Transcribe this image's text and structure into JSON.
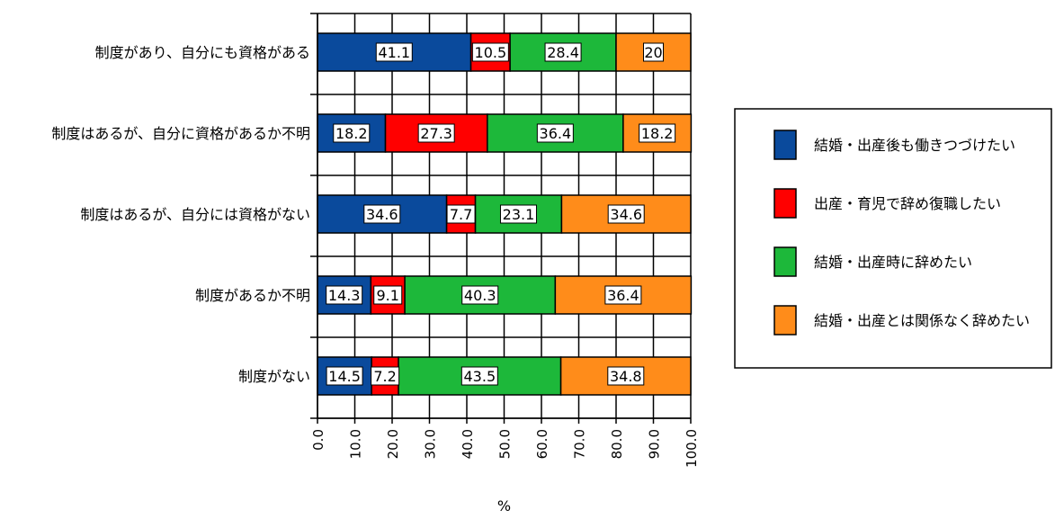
{
  "chart_data": {
    "type": "bar",
    "orientation": "horizontal",
    "stacked": true,
    "categories": [
      "制度があり、自分にも資格がある",
      "制度はあるが、自分に資格があるか不明",
      "制度はあるが、自分には資格がない",
      "制度があるか不明",
      "制度がない"
    ],
    "series": [
      {
        "name": "結婚・出産後も働きつづけたい",
        "color": "#0a4a9c",
        "values": [
          41.1,
          18.2,
          34.6,
          14.3,
          14.5
        ]
      },
      {
        "name": "出産・育児で辞め復職したい",
        "color": "#ff0000",
        "values": [
          10.5,
          27.3,
          7.7,
          9.1,
          7.2
        ]
      },
      {
        "name": "結婚・出産時に辞めたい",
        "color": "#1db83a",
        "values": [
          28.4,
          36.4,
          23.1,
          40.3,
          43.5
        ]
      },
      {
        "name": "結婚・出産とは関係なく辞めたい",
        "color": "#ff8c1a",
        "values": [
          20,
          18.2,
          34.6,
          36.4,
          34.8
        ]
      }
    ],
    "data_labels": [
      [
        "41.1",
        "18.2",
        "34.6",
        "14.3",
        "14.5"
      ],
      [
        "10.5",
        "27.3",
        "7.7",
        "9.1",
        "7.2"
      ],
      [
        "28.4",
        "36.4",
        "23.1",
        "40.3",
        "43.5"
      ],
      [
        "20",
        "18.2",
        "34.6",
        "36.4",
        "34.8"
      ]
    ],
    "xlabel": "%",
    "xlim": [
      0,
      100
    ],
    "xticks": [
      "0.0",
      "10.0",
      "20.0",
      "30.0",
      "40.0",
      "50.0",
      "60.0",
      "70.0",
      "80.0",
      "90.0",
      "100.0"
    ],
    "grid": true,
    "legend_position": "right"
  }
}
